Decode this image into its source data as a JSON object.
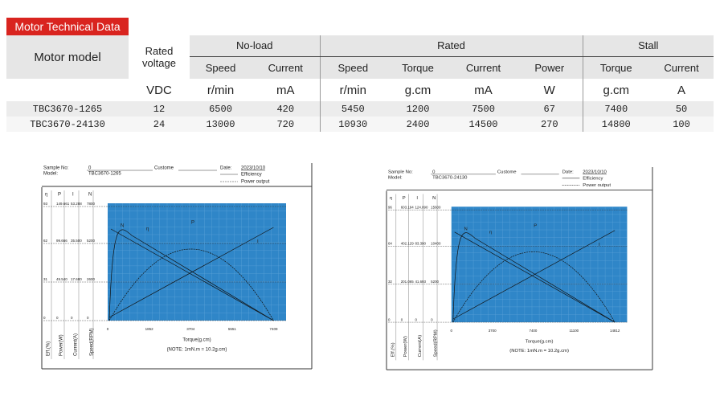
{
  "header": {
    "badge": "Motor Technical Data"
  },
  "table": {
    "model_header": "Motor model",
    "voltage_header": "Rated voltage",
    "groups": [
      "No-load",
      "Rated",
      "Stall"
    ],
    "subheaders": [
      "Speed",
      "Current",
      "Speed",
      "Torque",
      "Current",
      "Power",
      "Torque",
      "Current"
    ],
    "units": [
      "VDC",
      "r/min",
      "mA",
      "r/min",
      "g.cm",
      "mA",
      "W",
      "g.cm",
      "A"
    ],
    "rows": [
      [
        "TBC3670-1265",
        "12",
        "6500",
        "420",
        "5450",
        "1200",
        "7500",
        "67",
        "7400",
        "50"
      ],
      [
        "TBC3670-24130",
        "24",
        "13000",
        "720",
        "10930",
        "2400",
        "14500",
        "270",
        "14800",
        "100"
      ]
    ]
  },
  "charts": [
    {
      "sample_no_label": "Sample No:",
      "sample_no": "0",
      "customer_label": "Custome",
      "date_label": "Date:",
      "date": "2023/10/10",
      "model_label": "Model:",
      "model": "TBC3670-1265",
      "legend": [
        "Efficiency",
        "Power output"
      ],
      "columns": [
        "η",
        "P",
        "I",
        "N"
      ],
      "rows": [
        [
          "93",
          "149.661",
          "53.288",
          "7800"
        ],
        [
          "62",
          "99.666",
          "35.500",
          "5200"
        ],
        [
          "31",
          "49.540",
          "17.680",
          "2600"
        ],
        [
          "0",
          "0",
          "0",
          "0"
        ]
      ],
      "x_ticks": [
        "0",
        "1852",
        "3704",
        "5551",
        "7409"
      ],
      "curve_labels": [
        "N",
        "η",
        "P",
        "I"
      ],
      "x_label": "Torque(g.cm)",
      "note": "(NOTE: 1mN.m = 10.2g.cm)",
      "y_labels": [
        "Eff.(%)",
        "Power(W)",
        "Current(A)",
        "Speed(RPM)"
      ]
    },
    {
      "sample_no_label": "Sample No:",
      "sample_no": "0",
      "customer_label": "Custome",
      "date_label": "Date:",
      "date": "2023/10/10",
      "model_label": "Model:",
      "model": "TBC3670-24130",
      "legend": [
        "Efficiency",
        "Power output"
      ],
      "columns": [
        "η",
        "P",
        "I",
        "N"
      ],
      "rows": [
        [
          "96",
          "603.194",
          "124.090",
          "15600"
        ],
        [
          "64",
          "402.129",
          "83.390",
          "10400"
        ],
        [
          "32",
          "201.065",
          "41.693",
          "5200"
        ],
        [
          "0",
          "0",
          "0",
          "0"
        ]
      ],
      "x_ticks": [
        "0",
        "3700",
        "7400",
        "11100",
        "14812"
      ],
      "curve_labels": [
        "N",
        "η",
        "P",
        "I"
      ],
      "x_label": "Torque(g.cm)",
      "note": "(NOTE: 1mN.m = 10.2g.cm)",
      "y_labels": [
        "Eff.(%)",
        "Power(W)",
        "Current(A)",
        "Speed(RPM)"
      ]
    }
  ]
}
